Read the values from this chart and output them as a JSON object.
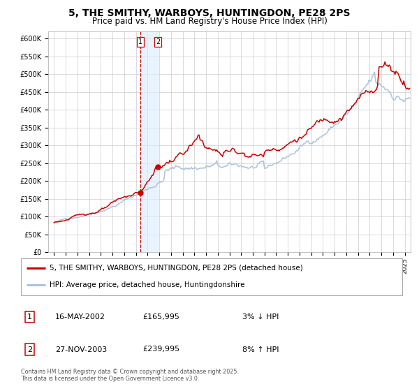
{
  "title": "5, THE SMITHY, WARBOYS, HUNTINGDON, PE28 2PS",
  "subtitle": "Price paid vs. HM Land Registry's House Price Index (HPI)",
  "title_fontsize": 10,
  "subtitle_fontsize": 8.5,
  "bg_color": "#ffffff",
  "plot_bg_color": "#ffffff",
  "grid_color": "#cccccc",
  "hpi_line_color": "#aac4dd",
  "price_line_color": "#cc0000",
  "marker_color": "#cc0000",
  "shade_color": "#ddeeff",
  "vline_color": "#cc0000",
  "ylim": [
    0,
    620000
  ],
  "ytick_step": 50000,
  "transactions": [
    {
      "date_num": 2002.37,
      "price": 165995,
      "label": "1",
      "vline": true
    },
    {
      "date_num": 2003.9,
      "price": 239995,
      "label": "2",
      "vline": false
    }
  ],
  "shade_xmin": 2002.37,
  "shade_xmax": 2003.9,
  "legend_entries": [
    {
      "color": "#cc0000",
      "label": "5, THE SMITHY, WARBOYS, HUNTINGDON, PE28 2PS (detached house)"
    },
    {
      "color": "#aac4dd",
      "label": "HPI: Average price, detached house, Huntingdonshire"
    }
  ],
  "table_rows": [
    {
      "num": "1",
      "date": "16-MAY-2002",
      "price": "£165,995",
      "pct": "3% ↓ HPI"
    },
    {
      "num": "2",
      "date": "27-NOV-2003",
      "price": "£239,995",
      "pct": "8% ↑ HPI"
    }
  ],
  "footnote": "Contains HM Land Registry data © Crown copyright and database right 2025.\nThis data is licensed under the Open Government Licence v3.0.",
  "xlim_start": 1994.5,
  "xlim_end": 2025.5
}
